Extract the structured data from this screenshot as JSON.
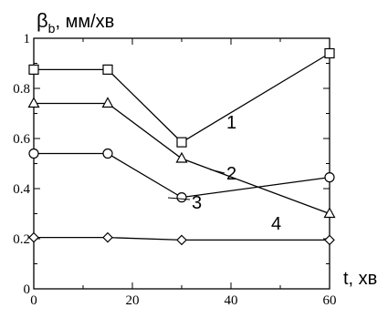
{
  "chart_data": {
    "type": "line",
    "ylabel_main": "β",
    "ylabel_sub": "b",
    "ylabel_unit": ", мм/хв",
    "xlabel": "t, хв",
    "xlim": [
      0,
      60
    ],
    "ylim": [
      0,
      1
    ],
    "xticks": [
      0,
      20,
      40,
      60
    ],
    "yticks": [
      0,
      0.2,
      0.4,
      0.6,
      0.8,
      1
    ],
    "xtick_labels": [
      "0",
      "20",
      "40",
      "60"
    ],
    "ytick_labels": [
      "0",
      "0.2",
      "0.4",
      "0.6",
      "0.8",
      "1"
    ],
    "grid": false,
    "series": [
      {
        "name": "1",
        "marker": "square",
        "x": [
          0,
          15,
          30,
          60
        ],
        "values": [
          0.875,
          0.875,
          0.585,
          0.94
        ]
      },
      {
        "name": "2",
        "marker": "triangle",
        "x": [
          0,
          15,
          30,
          60
        ],
        "values": [
          0.74,
          0.74,
          0.52,
          0.3
        ]
      },
      {
        "name": "3",
        "marker": "circle",
        "x": [
          0,
          15,
          30,
          60
        ],
        "values": [
          0.54,
          0.54,
          0.365,
          0.445
        ]
      },
      {
        "name": "4",
        "marker": "diamond",
        "x": [
          0,
          15,
          30,
          60
        ],
        "values": [
          0.205,
          0.205,
          0.195,
          0.195
        ]
      }
    ]
  }
}
